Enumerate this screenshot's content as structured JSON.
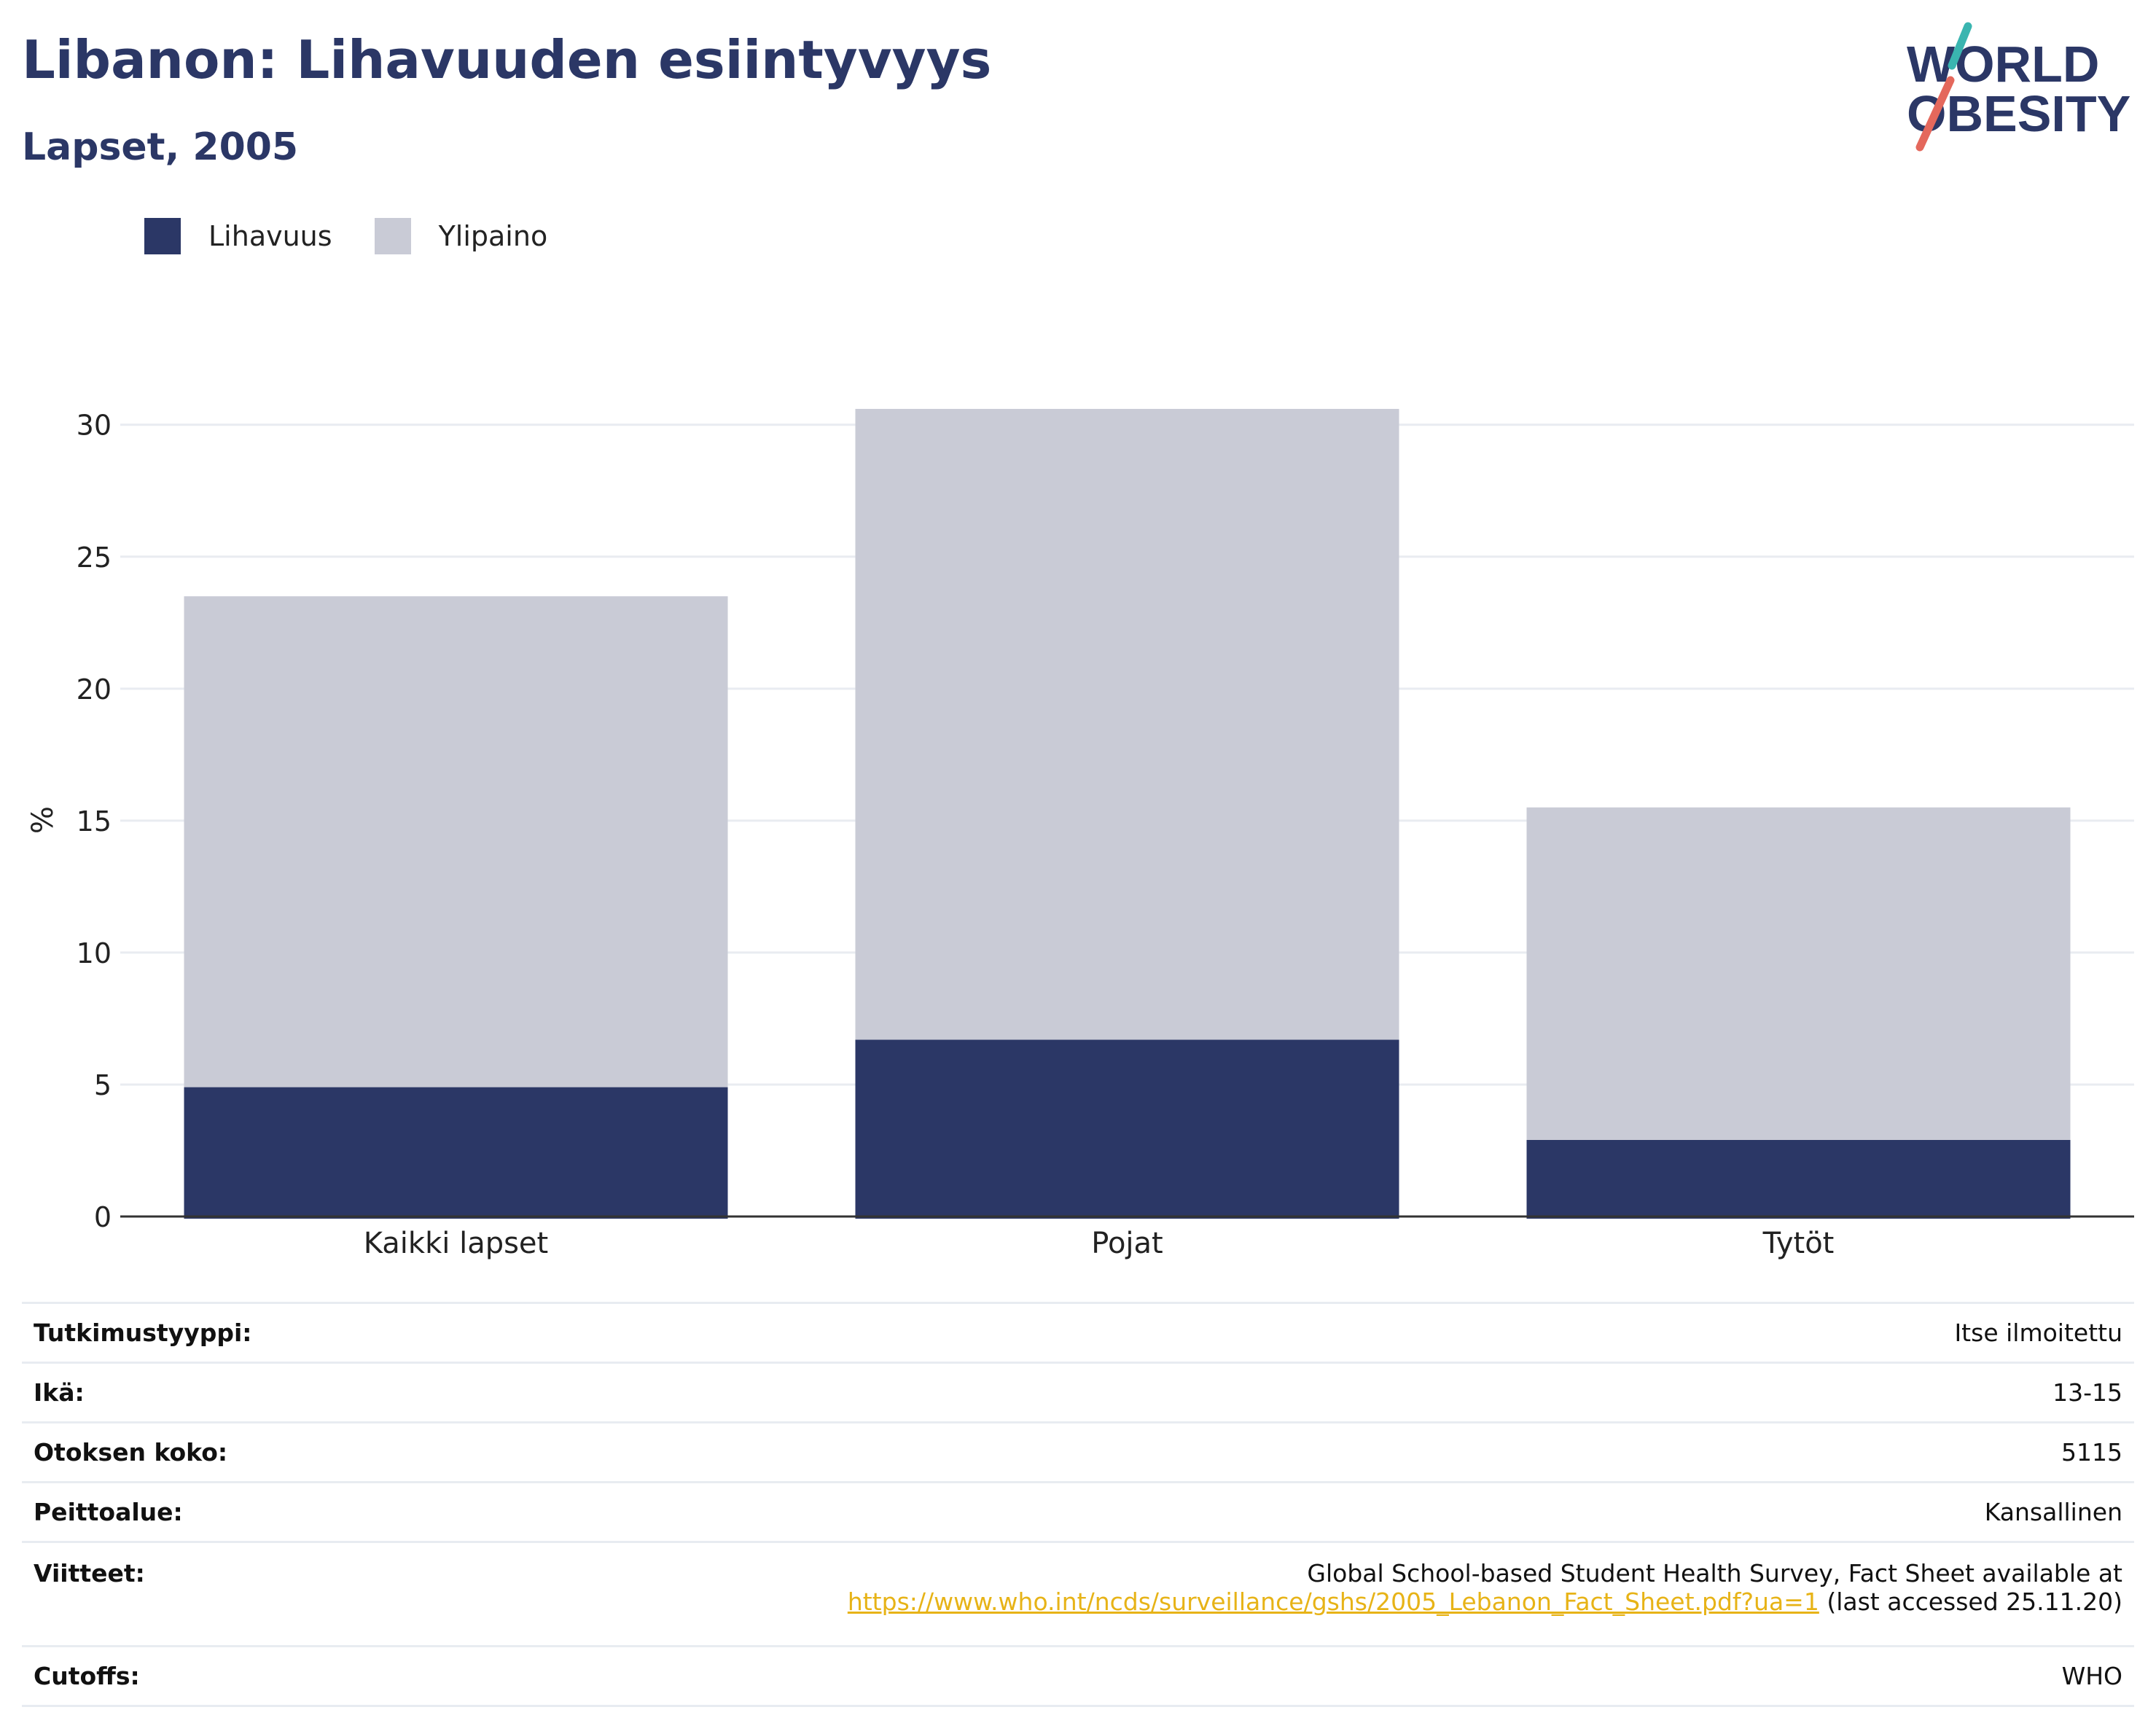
{
  "header": {
    "title": "Libanon: Lihavuuden esiintyvyys",
    "subtitle": "Lapset, 2005"
  },
  "logo": {
    "line1": "WORLD",
    "line2": "OBESITY"
  },
  "colors": {
    "obesity": "#2b3766",
    "overweight": "#c9cbd6",
    "accent_teal": "#3ab5b0",
    "accent_coral": "#e4685c",
    "link": "#e7b317"
  },
  "legend": [
    {
      "label": "Lihavuus",
      "color": "#2b3766"
    },
    {
      "label": "Ylipaino",
      "color": "#c9cbd6"
    }
  ],
  "chart_data": {
    "type": "bar",
    "stacked": true,
    "categories": [
      "Kaikki lapset",
      "Pojat",
      "Tytöt"
    ],
    "series": [
      {
        "name": "Lihavuus",
        "values": [
          4.9,
          6.7,
          2.9
        ]
      },
      {
        "name": "Ylipaino",
        "values": [
          18.6,
          23.9,
          12.6
        ]
      }
    ],
    "totals": [
      23.5,
      30.6,
      15.5
    ],
    "ylabel": "%",
    "ylim": [
      0,
      30.6
    ],
    "yticks": [
      0,
      5,
      10,
      15,
      20,
      25,
      30
    ],
    "grid": true,
    "legend_position": "top-left"
  },
  "details": {
    "study_type_label": "Tutkimustyyppi:",
    "study_type_value": "Itse ilmoitettu",
    "age_label": "Ikä:",
    "age_value": "13-15",
    "sample_label": "Otoksen koko:",
    "sample_value": "5115",
    "coverage_label": "Peittoalue:",
    "coverage_value": "Kansallinen",
    "refs_label": "Viitteet:",
    "refs_line1": "Global School-based Student Health Survey, Fact Sheet available at",
    "refs_link": "https://www.who.int/ncds/surveillance/gshs/2005_Lebanon_Fact_Sheet.pdf?ua=1",
    "refs_suffix": " (last accessed 25.11.20)",
    "cutoffs_label": "Cutoffs:",
    "cutoffs_value": "WHO"
  }
}
